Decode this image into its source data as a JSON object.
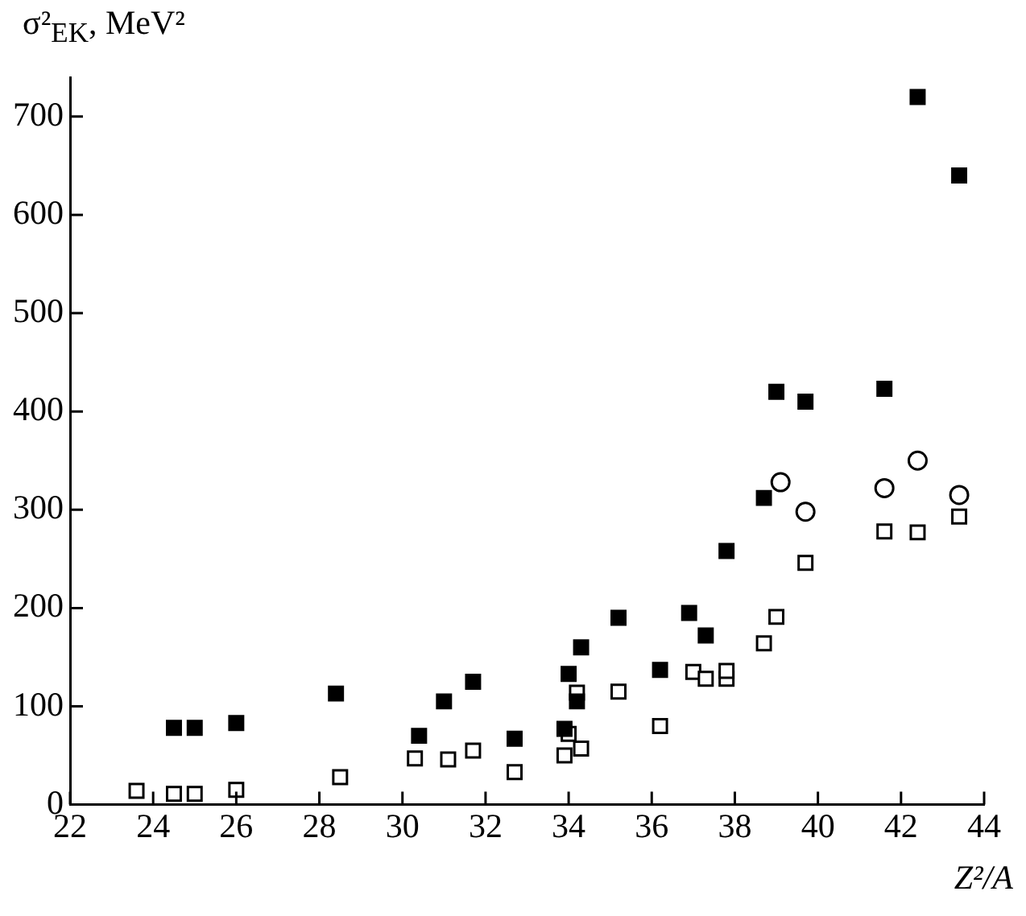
{
  "chart_data": {
    "type": "scatter",
    "xlabel": "Z²/A",
    "ylabel": "σ²$_{EK}$, MeV²",
    "xlim": [
      22,
      44
    ],
    "xticks": [
      22,
      24,
      26,
      28,
      30,
      32,
      34,
      36,
      38,
      40,
      42,
      44
    ],
    "ylim": [
      0,
      740
    ],
    "yticks": [
      0,
      100,
      200,
      300,
      400,
      500,
      600,
      700
    ],
    "grid": false,
    "legend": false,
    "series": [
      {
        "color": "#000000",
        "marker": "square",
        "x": [
          24.5,
          25,
          26,
          28.4,
          30.4,
          31,
          31.7,
          32.7,
          33.9,
          34,
          34.2,
          34.3,
          35.2,
          36.2,
          36.9,
          37.3,
          37.8,
          38.7,
          39,
          39.7,
          41.6,
          42.4,
          43.4
        ],
        "values": [
          78,
          78,
          83,
          113,
          70,
          105,
          125,
          67,
          77,
          133,
          105,
          160,
          190,
          137,
          195,
          172,
          258,
          312,
          420,
          410,
          423,
          720,
          640
        ]
      },
      {
        "color": "#ffffff",
        "marker": "square",
        "x": [
          23.6,
          24.5,
          25,
          26,
          28.5,
          30.3,
          31.1,
          31.7,
          32.7,
          33.9,
          34,
          34.3,
          34.2,
          35.2,
          36.2,
          37,
          37.3,
          37.8,
          37.8,
          38.7,
          39,
          39.7,
          41.6,
          42.4,
          43.4
        ],
        "values": [
          14,
          11,
          11,
          15,
          28,
          47,
          46,
          55,
          33,
          50,
          72,
          57,
          114,
          115,
          80,
          135,
          128,
          128,
          136,
          164,
          191,
          246,
          278,
          277,
          293
        ]
      },
      {
        "color": "#ffffff",
        "marker": "circle",
        "x": [
          39.1,
          39.7,
          41.6,
          42.4,
          43.4
        ],
        "values": [
          328,
          298,
          322,
          350,
          315
        ]
      }
    ]
  }
}
